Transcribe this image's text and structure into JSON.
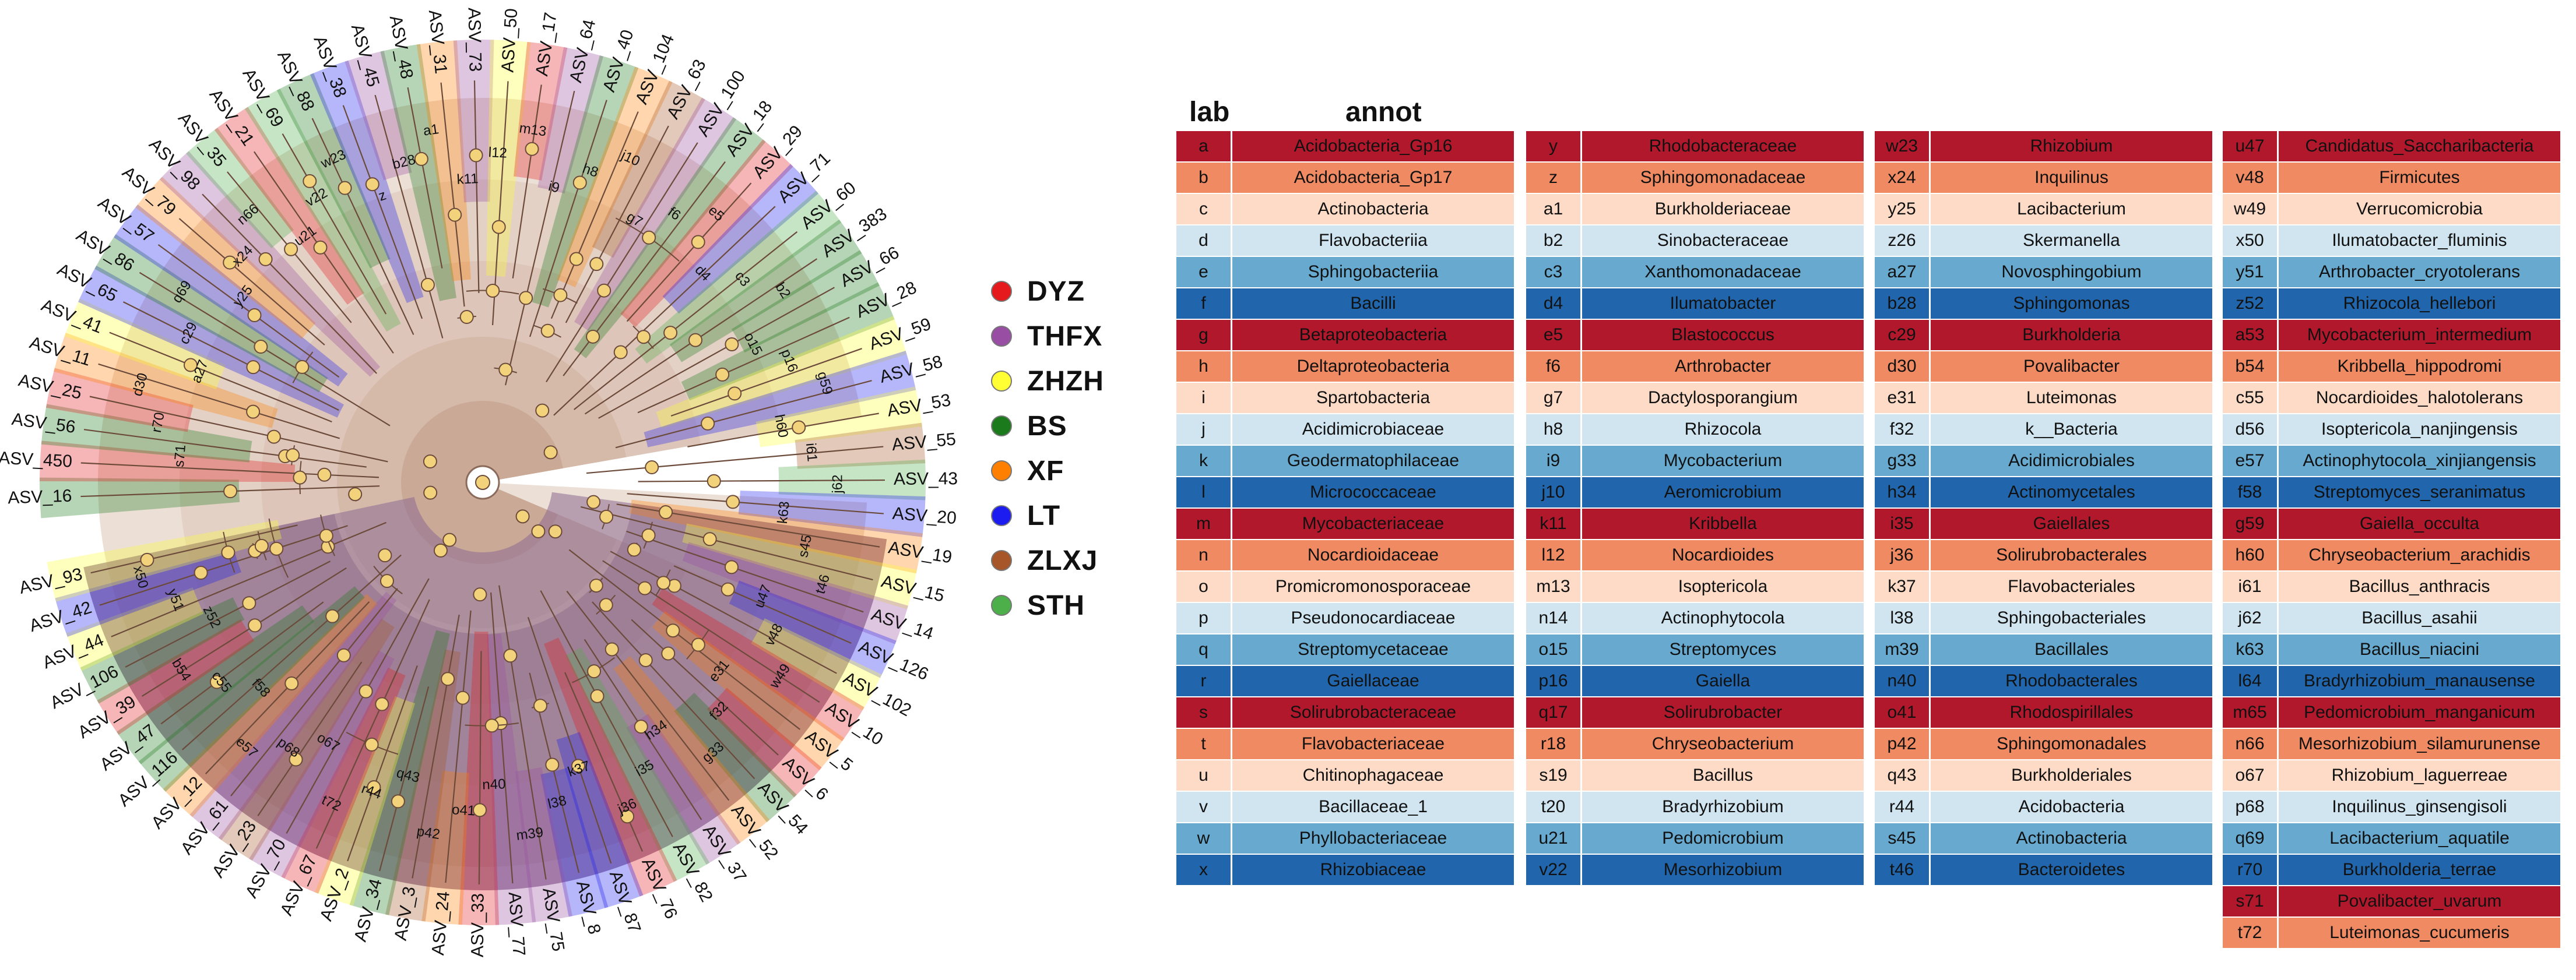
{
  "legend": {
    "items": [
      {
        "label": "DYZ",
        "color": "#e41a1c"
      },
      {
        "label": "THFX",
        "color": "#984ea3"
      },
      {
        "label": "ZHZH",
        "color": "#ffff33"
      },
      {
        "label": "BS",
        "color": "#1b7a1b"
      },
      {
        "label": "XF",
        "color": "#ff7f00"
      },
      {
        "label": "LT",
        "color": "#1c1cf0"
      },
      {
        "label": "ZLXJ",
        "color": "#a65628"
      },
      {
        "label": "STH",
        "color": "#4daf4a"
      }
    ]
  },
  "table": {
    "header_lab": "lab",
    "header_annot": "annot",
    "palette": [
      "#b2182b",
      "#ef8a62",
      "#fddbc7",
      "#d1e5f0",
      "#67a9cf",
      "#2166ac"
    ],
    "columns": [
      [
        [
          "a",
          "Acidobacteria_Gp16"
        ],
        [
          "b",
          "Acidobacteria_Gp17"
        ],
        [
          "c",
          "Actinobacteria"
        ],
        [
          "d",
          "Flavobacteriia"
        ],
        [
          "e",
          "Sphingobacteriia"
        ],
        [
          "f",
          "Bacilli"
        ],
        [
          "g",
          "Betaproteobacteria"
        ],
        [
          "h",
          "Deltaproteobacteria"
        ],
        [
          "i",
          "Spartobacteria"
        ],
        [
          "j",
          "Acidimicrobiaceae"
        ],
        [
          "k",
          "Geodermatophilaceae"
        ],
        [
          "l",
          "Micrococcaceae"
        ],
        [
          "m",
          "Mycobacteriaceae"
        ],
        [
          "n",
          "Nocardioidaceae"
        ],
        [
          "o",
          "Promicromonosporaceae"
        ],
        [
          "p",
          "Pseudonocardiaceae"
        ],
        [
          "q",
          "Streptomycetaceae"
        ],
        [
          "r",
          "Gaiellaceae"
        ],
        [
          "s",
          "Solirubrobacteraceae"
        ],
        [
          "t",
          "Flavobacteriaceae"
        ],
        [
          "u",
          "Chitinophagaceae"
        ],
        [
          "v",
          "Bacillaceae_1"
        ],
        [
          "w",
          "Phyllobacteriaceae"
        ],
        [
          "x",
          "Rhizobiaceae"
        ]
      ],
      [
        [
          "y",
          "Rhodobacteraceae"
        ],
        [
          "z",
          "Sphingomonadaceae"
        ],
        [
          "a1",
          "Burkholderiaceae"
        ],
        [
          "b2",
          "Sinobacteraceae"
        ],
        [
          "c3",
          "Xanthomonadaceae"
        ],
        [
          "d4",
          "Ilumatobacter"
        ],
        [
          "e5",
          "Blastococcus"
        ],
        [
          "f6",
          "Arthrobacter"
        ],
        [
          "g7",
          "Dactylosporangium"
        ],
        [
          "h8",
          "Rhizocola"
        ],
        [
          "i9",
          "Mycobacterium"
        ],
        [
          "j10",
          "Aeromicrobium"
        ],
        [
          "k11",
          "Kribbella"
        ],
        [
          "l12",
          "Nocardioides"
        ],
        [
          "m13",
          "Isoptericola"
        ],
        [
          "n14",
          "Actinophytocola"
        ],
        [
          "o15",
          "Streptomyces"
        ],
        [
          "p16",
          "Gaiella"
        ],
        [
          "q17",
          "Solirubrobacter"
        ],
        [
          "r18",
          "Chryseobacterium"
        ],
        [
          "s19",
          "Bacillus"
        ],
        [
          "t20",
          "Bradyrhizobium"
        ],
        [
          "u21",
          "Pedomicrobium"
        ],
        [
          "v22",
          "Mesorhizobium"
        ]
      ],
      [
        [
          "w23",
          "Rhizobium"
        ],
        [
          "x24",
          "Inquilinus"
        ],
        [
          "y25",
          "Lacibacterium"
        ],
        [
          "z26",
          "Skermanella"
        ],
        [
          "a27",
          "Novosphingobium"
        ],
        [
          "b28",
          "Sphingomonas"
        ],
        [
          "c29",
          "Burkholderia"
        ],
        [
          "d30",
          "Povalibacter"
        ],
        [
          "e31",
          "Luteimonas"
        ],
        [
          "f32",
          "k__Bacteria"
        ],
        [
          "g33",
          "Acidimicrobiales"
        ],
        [
          "h34",
          "Actinomycetales"
        ],
        [
          "i35",
          "Gaiellales"
        ],
        [
          "j36",
          "Solirubrobacterales"
        ],
        [
          "k37",
          "Flavobacteriales"
        ],
        [
          "l38",
          "Sphingobacteriales"
        ],
        [
          "m39",
          "Bacillales"
        ],
        [
          "n40",
          "Rhodobacterales"
        ],
        [
          "o41",
          "Rhodospirillales"
        ],
        [
          "p42",
          "Sphingomonadales"
        ],
        [
          "q43",
          "Burkholderiales"
        ],
        [
          "r44",
          "Acidobacteria"
        ],
        [
          "s45",
          "Actinobacteria"
        ],
        [
          "t46",
          "Bacteroidetes"
        ]
      ],
      [
        [
          "u47",
          "Candidatus_Saccharibacteria"
        ],
        [
          "v48",
          "Firmicutes"
        ],
        [
          "w49",
          "Verrucomicrobia"
        ],
        [
          "x50",
          "Ilumatobacter_fluminis"
        ],
        [
          "y51",
          "Arthrobacter_cryotolerans"
        ],
        [
          "z52",
          "Rhizocola_hellebori"
        ],
        [
          "a53",
          "Mycobacterium_intermedium"
        ],
        [
          "b54",
          "Kribbella_hippodromi"
        ],
        [
          "c55",
          "Nocardioides_halotolerans"
        ],
        [
          "d56",
          "Isoptericola_nanjingensis"
        ],
        [
          "e57",
          "Actinophytocola_xinjiangensis"
        ],
        [
          "f58",
          "Streptomyces_seranimatus"
        ],
        [
          "g59",
          "Gaiella_occulta"
        ],
        [
          "h60",
          "Chryseobacterium_arachidis"
        ],
        [
          "i61",
          "Bacillus_anthracis"
        ],
        [
          "j62",
          "Bacillus_asahii"
        ],
        [
          "k63",
          "Bacillus_niacini"
        ],
        [
          "l64",
          "Bradyrhizobium_manausense"
        ],
        [
          "m65",
          "Pedomicrobium_manganicum"
        ],
        [
          "n66",
          "Mesorhizobium_silamurunense"
        ],
        [
          "o67",
          "Rhizobium_laguerreae"
        ],
        [
          "p68",
          "Inquilinus_ginsengisoli"
        ],
        [
          "q69",
          "Lacibacterium_aquatile"
        ],
        [
          "r70",
          "Burkholderia_terrae"
        ],
        [
          "s71",
          "Povalibacter_uvarum"
        ],
        [
          "t72",
          "Luteimonas_cucumeris"
        ]
      ]
    ]
  },
  "tree": {
    "tip_labels": [
      "ASV_16",
      "ASV_450",
      "ASV_56",
      "ASV_25",
      "ASV_11",
      "ASV_41",
      "ASV_65",
      "ASV_86",
      "ASV_57",
      "ASV_79",
      "ASV_98",
      "ASV_35",
      "ASV_21",
      "ASV_69",
      "ASV_88",
      "ASV_38",
      "ASV_45",
      "ASV_48",
      "ASV_31",
      "ASV_73",
      "ASV_50",
      "ASV_17",
      "ASV_64",
      "ASV_40",
      "ASV_104",
      "ASV_63",
      "ASV_100",
      "ASV_18",
      "ASV_29",
      "ASV_71",
      "ASV_60",
      "ASV_383",
      "ASV_66",
      "ASV_28",
      "ASV_59",
      "ASV_58",
      "ASV_53",
      "ASV_55",
      "ASV_43",
      "ASV_20",
      "ASV_19",
      "ASV_15",
      "ASV_14",
      "ASV_126",
      "ASV_102",
      "ASV_10",
      "ASV_5",
      "ASV_6",
      "ASV_54",
      "ASV_52",
      "ASV_37",
      "ASV_82",
      "ASV_76",
      "ASV_87",
      "ASV_8",
      "ASV_75",
      "ASV_77",
      "ASV_33",
      "ASV_24",
      "ASV_3",
      "ASV_34",
      "ASV_2",
      "ASV_67",
      "ASV_70",
      "ASV_23",
      "ASV_61",
      "ASV_12",
      "ASV_116",
      "ASV_47",
      "ASV_39",
      "ASV_106",
      "ASV_44",
      "ASV_42",
      "ASV_93"
    ],
    "clade_labels": [
      "s71",
      "r70",
      "d30",
      "a27",
      "c29",
      "q69",
      "y25",
      "x24",
      "n66",
      "u21",
      "v22",
      "w23",
      "z",
      "b28",
      "a1",
      "k11",
      "l12",
      "m13",
      "i9",
      "h8",
      "j10",
      "g7",
      "f6",
      "e5",
      "d4",
      "c3",
      "b2",
      "o15",
      "p16",
      "g59",
      "h60",
      "i61",
      "j62",
      "k63",
      "s45",
      "t46",
      "u47",
      "v48",
      "w49",
      "e31",
      "f32",
      "g33",
      "h34",
      "i35",
      "j36",
      "k37",
      "l38",
      "m39",
      "n40",
      "o41",
      "p42",
      "q43",
      "r44",
      "t72",
      "o67",
      "p68",
      "e57",
      "f58",
      "c55",
      "b54",
      "z52",
      "y51",
      "x50"
    ]
  }
}
